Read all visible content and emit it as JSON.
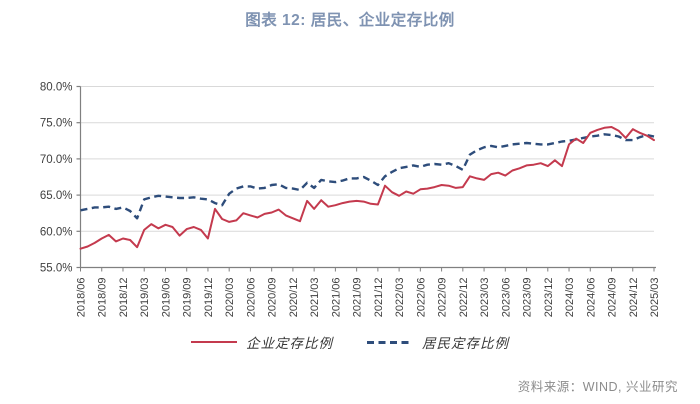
{
  "title": "图表 12: 居民、企业定存比例",
  "source": "资料来源：WIND, 兴业研究",
  "colors": {
    "title": "#7F93B2",
    "enterprise": "#C43A4E",
    "resident": "#2E4D7B",
    "grid": "#D9D9D9",
    "axis": "#808080",
    "tick_text": "#3F3F3F",
    "legend_text": "#383838",
    "source_text": "#8C8C8C"
  },
  "legend": [
    {
      "name": "企业定存比例",
      "series": "enterprise",
      "style": "solid"
    },
    {
      "name": "居民定存比例",
      "series": "resident",
      "style": "dashed"
    }
  ],
  "chart_data": {
    "type": "line",
    "title": "图表 12: 居民、企业定存比例",
    "xlabel": "",
    "ylabel": "",
    "ylim": [
      55,
      80
    ],
    "y_ticks": [
      55,
      60,
      65,
      70,
      75,
      80
    ],
    "y_tick_format": "0.0%",
    "x_tick_every": 3,
    "grid": "horizontal",
    "legend_position": "bottom",
    "x": [
      "2018/06",
      "2018/07",
      "2018/08",
      "2018/09",
      "2018/10",
      "2018/11",
      "2018/12",
      "2019/01",
      "2019/02",
      "2019/03",
      "2019/04",
      "2019/05",
      "2019/06",
      "2019/07",
      "2019/08",
      "2019/09",
      "2019/10",
      "2019/11",
      "2019/12",
      "2020/01",
      "2020/02",
      "2020/03",
      "2020/04",
      "2020/05",
      "2020/06",
      "2020/07",
      "2020/08",
      "2020/09",
      "2020/10",
      "2020/11",
      "2020/12",
      "2021/01",
      "2021/02",
      "2021/03",
      "2021/04",
      "2021/05",
      "2021/06",
      "2021/07",
      "2021/08",
      "2021/09",
      "2021/10",
      "2021/11",
      "2021/12",
      "2022/01",
      "2022/02",
      "2022/03",
      "2022/04",
      "2022/05",
      "2022/06",
      "2022/07",
      "2022/08",
      "2022/09",
      "2022/10",
      "2022/11",
      "2022/12",
      "2023/01",
      "2023/02",
      "2023/03",
      "2023/04",
      "2023/05",
      "2023/06",
      "2023/07",
      "2023/08",
      "2023/09",
      "2023/10",
      "2023/11",
      "2023/12",
      "2024/01",
      "2024/02",
      "2024/03",
      "2024/04",
      "2024/05",
      "2024/06",
      "2024/07",
      "2024/08",
      "2024/09",
      "2024/10",
      "2024/11",
      "2024/12",
      "2025/01",
      "2025/02",
      "2025/03"
    ],
    "series": [
      {
        "name": "企业定存比例",
        "color": "#C43A4E",
        "style": "solid",
        "values": [
          57.6,
          57.9,
          58.4,
          59.0,
          59.5,
          58.6,
          59.0,
          58.8,
          57.8,
          60.2,
          61.0,
          60.4,
          60.9,
          60.6,
          59.4,
          60.3,
          60.6,
          60.2,
          59.0,
          63.1,
          61.7,
          61.3,
          61.5,
          62.5,
          62.2,
          61.9,
          62.4,
          62.6,
          63.0,
          62.2,
          61.8,
          61.4,
          64.2,
          63.1,
          64.3,
          63.4,
          63.6,
          63.9,
          64.1,
          64.2,
          64.1,
          63.8,
          63.7,
          66.3,
          65.4,
          64.9,
          65.5,
          65.2,
          65.8,
          65.9,
          66.1,
          66.4,
          66.3,
          66.0,
          66.1,
          67.6,
          67.3,
          67.1,
          67.9,
          68.1,
          67.7,
          68.4,
          68.7,
          69.1,
          69.2,
          69.4,
          69.0,
          69.8,
          69.0,
          72.0,
          72.8,
          72.2,
          73.6,
          74.0,
          74.3,
          74.4,
          73.9,
          72.9,
          74.1,
          73.6,
          73.2,
          72.6
        ]
      },
      {
        "name": "居民定存比例",
        "color": "#2E4D7B",
        "style": "dashed",
        "values": [
          62.9,
          63.1,
          63.3,
          63.3,
          63.4,
          63.1,
          63.3,
          62.8,
          61.8,
          64.4,
          64.7,
          64.9,
          64.8,
          64.7,
          64.6,
          64.6,
          64.7,
          64.5,
          64.4,
          63.9,
          63.6,
          65.2,
          65.9,
          66.2,
          66.2,
          65.9,
          66.0,
          66.4,
          66.5,
          66.0,
          65.9,
          65.7,
          66.7,
          66.0,
          67.1,
          66.9,
          66.8,
          67.0,
          67.3,
          67.3,
          67.5,
          67.0,
          66.4,
          67.6,
          68.2,
          68.7,
          68.9,
          69.1,
          68.9,
          69.2,
          69.3,
          69.2,
          69.4,
          69.0,
          68.5,
          70.6,
          71.2,
          71.6,
          71.8,
          71.6,
          71.8,
          72.0,
          72.1,
          72.2,
          72.1,
          72.0,
          72.0,
          72.2,
          72.4,
          72.5,
          72.7,
          72.9,
          73.1,
          73.2,
          73.4,
          73.3,
          73.1,
          72.6,
          72.6,
          73.0,
          73.3,
          73.1
        ]
      }
    ]
  }
}
